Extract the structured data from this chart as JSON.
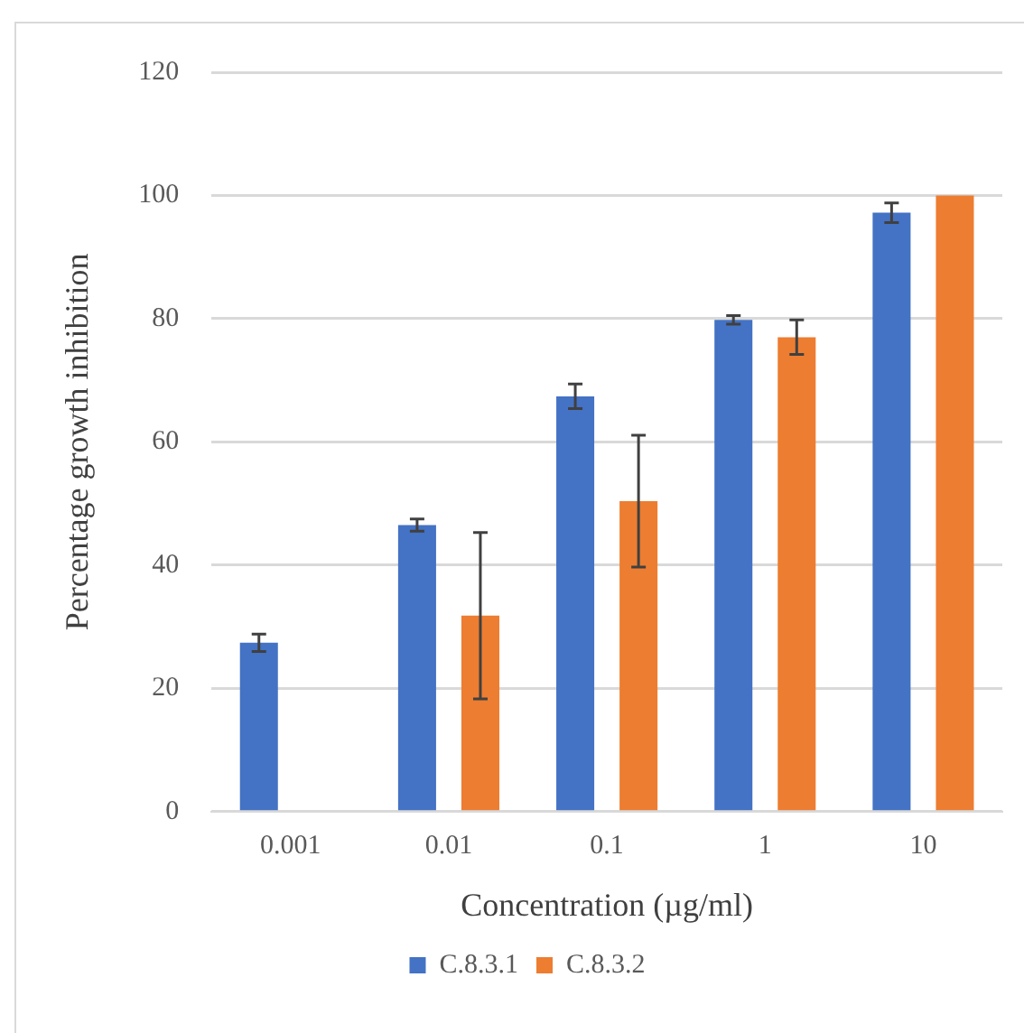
{
  "chart_data": {
    "type": "bar",
    "xlabel": "Concentration (µg/ml)",
    "ylabel": "Percentage growth inhibition",
    "categories": [
      "0.001",
      "0.01",
      "0.1",
      "1",
      "10"
    ],
    "series": [
      {
        "name": "C.8.3.1",
        "color": "#4472c4",
        "values": [
          27.4,
          46.5,
          67.4,
          79.8,
          97.2
        ],
        "errors": [
          1.4,
          1,
          2,
          0.7,
          1.6
        ]
      },
      {
        "name": "C.8.3.2",
        "color": "#ed7d31",
        "values": [
          null,
          31.8,
          50.4,
          77,
          100
        ],
        "errors": [
          null,
          13.5,
          10.7,
          2.8,
          null
        ]
      }
    ],
    "ylim": [
      0,
      120
    ],
    "yticks": [
      0,
      20,
      40,
      60,
      80,
      100,
      120
    ],
    "grid": "y",
    "legend": "bottom"
  }
}
